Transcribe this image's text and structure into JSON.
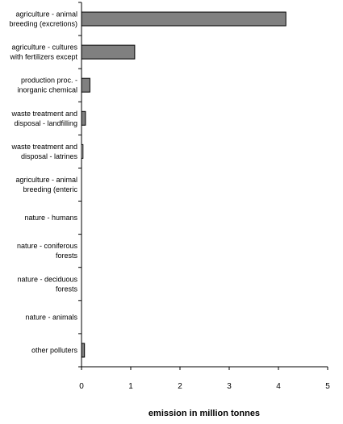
{
  "chart_data": {
    "type": "bar",
    "orientation": "horizontal",
    "categories": [
      [
        "agriculture - animal",
        "breeding (excretions)"
      ],
      [
        "agriculture - cultures",
        "with fertilizers except"
      ],
      [
        "production proc. -",
        "inorganic chemical"
      ],
      [
        "waste treatment and",
        "disposal - landfilling"
      ],
      [
        "waste treatment and",
        "disposal - latrines"
      ],
      [
        "agriculture - animal",
        "breeding (enteric"
      ],
      [
        "nature - humans"
      ],
      [
        "nature - coniferous",
        "forests"
      ],
      [
        "nature - deciduous",
        "forests"
      ],
      [
        "nature - animals"
      ],
      [
        "other polluters"
      ]
    ],
    "values": [
      4.15,
      1.08,
      0.17,
      0.08,
      0.03,
      0.0,
      0.0,
      0.0,
      0.0,
      0.0,
      0.06
    ],
    "xlabel": "emission in million tonnes",
    "xlim": [
      0,
      5
    ],
    "xticks": [
      0,
      1,
      2,
      3,
      4,
      5
    ],
    "grid": false,
    "legend": "none",
    "bar_color": "#808080",
    "bar_stroke": "#000000"
  }
}
